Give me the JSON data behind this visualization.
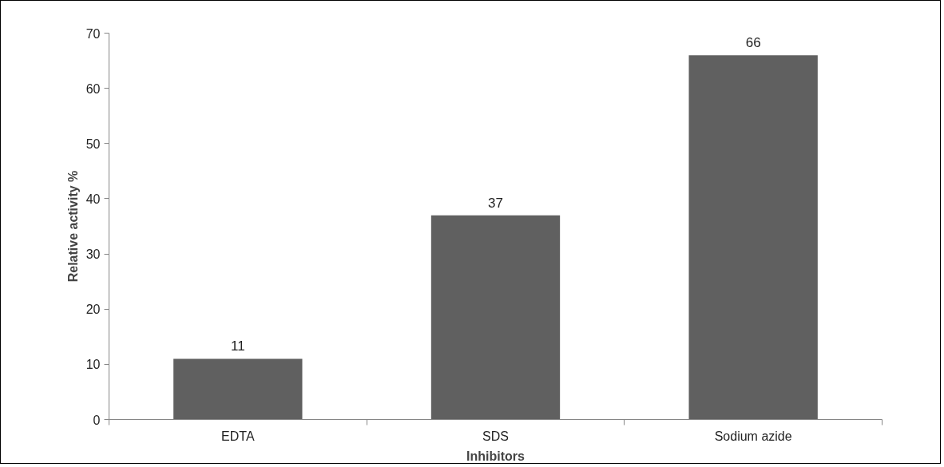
{
  "chart_data": {
    "type": "bar",
    "xlabel": "Inhibitors",
    "ylabel": "Relative activity %",
    "categories": [
      "EDTA",
      "SDS",
      "Sodium azide"
    ],
    "values": [
      11,
      37,
      66
    ],
    "color": "#606060",
    "ylim": [
      0,
      70
    ],
    "yticks": [
      0,
      10,
      20,
      30,
      40,
      50,
      60,
      70
    ],
    "data_labels": true,
    "grid": false
  }
}
